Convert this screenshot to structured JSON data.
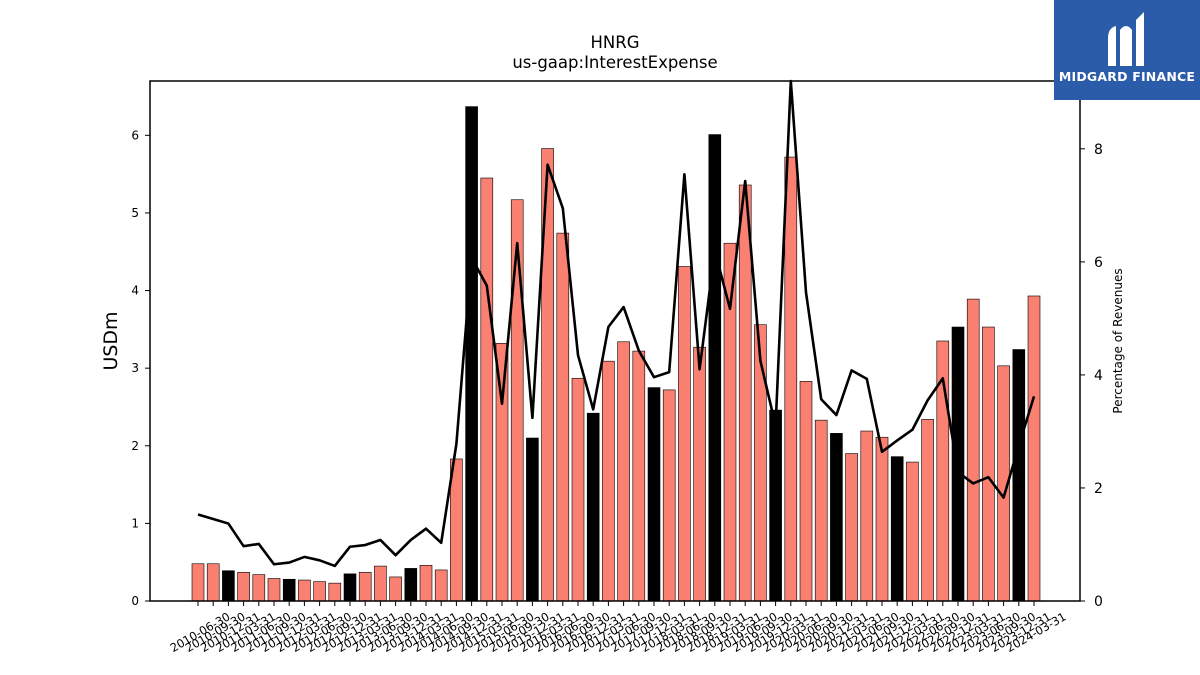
{
  "chart_data": {
    "type": "bar+line",
    "title": "HNRG",
    "subtitle": "us-gaap:InterestExpense",
    "ylabel_left": "USDm",
    "ylabel_right": "Percentage of Revenues",
    "ylim_left": [
      0,
      6.7
    ],
    "ylim_right": [
      0,
      9.2
    ],
    "yticks_left": [
      "0",
      "1",
      "2",
      "3",
      "4",
      "5",
      "6"
    ],
    "yticks_right": [
      "0",
      "2",
      "4",
      "6",
      "8"
    ],
    "categories": [
      "2010-06-30",
      "2010-09-30",
      "2010-12-31",
      "2011-03-31",
      "2011-06-30",
      "2011-09-30",
      "2011-12-31",
      "2012-03-31",
      "2012-06-30",
      "2012-09-30",
      "2012-12-31",
      "2013-03-31",
      "2013-06-30",
      "2013-09-30",
      "2013-12-31",
      "2014-03-31",
      "2014-06-30",
      "2014-09-30",
      "2014-12-31",
      "2015-03-31",
      "2015-06-30",
      "2015-09-30",
      "2015-12-31",
      "2016-03-31",
      "2016-06-30",
      "2016-09-30",
      "2016-12-31",
      "2017-03-31",
      "2017-06-30",
      "2017-09-30",
      "2017-12-31",
      "2018-03-31",
      "2018-06-30",
      "2018-09-30",
      "2018-12-31",
      "2019-03-31",
      "2019-06-30",
      "2019-09-30",
      "2019-12-31",
      "2020-03-31",
      "2020-06-30",
      "2020-09-30",
      "2020-12-31",
      "2021-03-31",
      "2021-06-30",
      "2021-09-30",
      "2021-12-31",
      "2022-03-31",
      "2022-06-30",
      "2022-09-30",
      "2022-12-31",
      "2023-03-31",
      "2023-06-30",
      "2023-09-30",
      "2023-12-31",
      "2024-03-31"
    ],
    "series": [
      {
        "kind": "bar",
        "values": [
          0.48,
          0.48,
          0.39,
          0.37,
          0.34,
          0.29,
          0.28,
          0.27,
          0.25,
          0.23,
          0.35,
          0.37,
          0.45,
          0.31,
          0.42,
          0.46,
          0.4,
          1.83,
          6.37,
          5.45,
          3.32,
          5.17,
          2.1,
          5.83,
          4.74,
          2.87,
          2.42,
          3.09,
          3.34,
          3.22,
          2.75,
          2.72,
          4.31,
          3.27,
          6.01,
          4.61,
          5.36,
          3.56,
          2.46,
          5.72,
          2.83,
          2.33,
          2.16,
          1.9,
          2.19,
          2.11,
          1.86,
          1.79,
          2.34,
          3.35,
          3.53,
          3.89,
          3.53,
          3.03,
          3.24,
          3.93
        ],
        "highlight_color": "#000000",
        "color": "#fa8072",
        "highlighted": [
          2,
          6,
          10,
          14,
          18,
          22,
          26,
          30,
          34,
          38,
          42,
          46,
          50,
          54
        ]
      },
      {
        "kind": "line",
        "axis": "right",
        "color": "#000000",
        "values": [
          1.53,
          1.45,
          1.37,
          0.97,
          1.01,
          0.65,
          0.68,
          0.78,
          0.72,
          0.62,
          0.96,
          0.99,
          1.08,
          0.81,
          1.08,
          1.28,
          1.03,
          2.78,
          6.07,
          5.58,
          3.49,
          6.33,
          3.24,
          7.72,
          6.95,
          4.35,
          3.39,
          4.85,
          5.2,
          4.43,
          3.96,
          4.05,
          7.55,
          4.1,
          6.2,
          5.17,
          7.43,
          4.25,
          3.1,
          9.2,
          5.46,
          3.57,
          3.29,
          4.08,
          3.93,
          2.64,
          2.84,
          3.03,
          3.55,
          3.94,
          2.28,
          2.08,
          2.19,
          1.83,
          2.75,
          3.62
        ]
      }
    ],
    "grid": false,
    "legend": "none"
  },
  "logo": {
    "text": "MIDGARD FINANCE"
  }
}
